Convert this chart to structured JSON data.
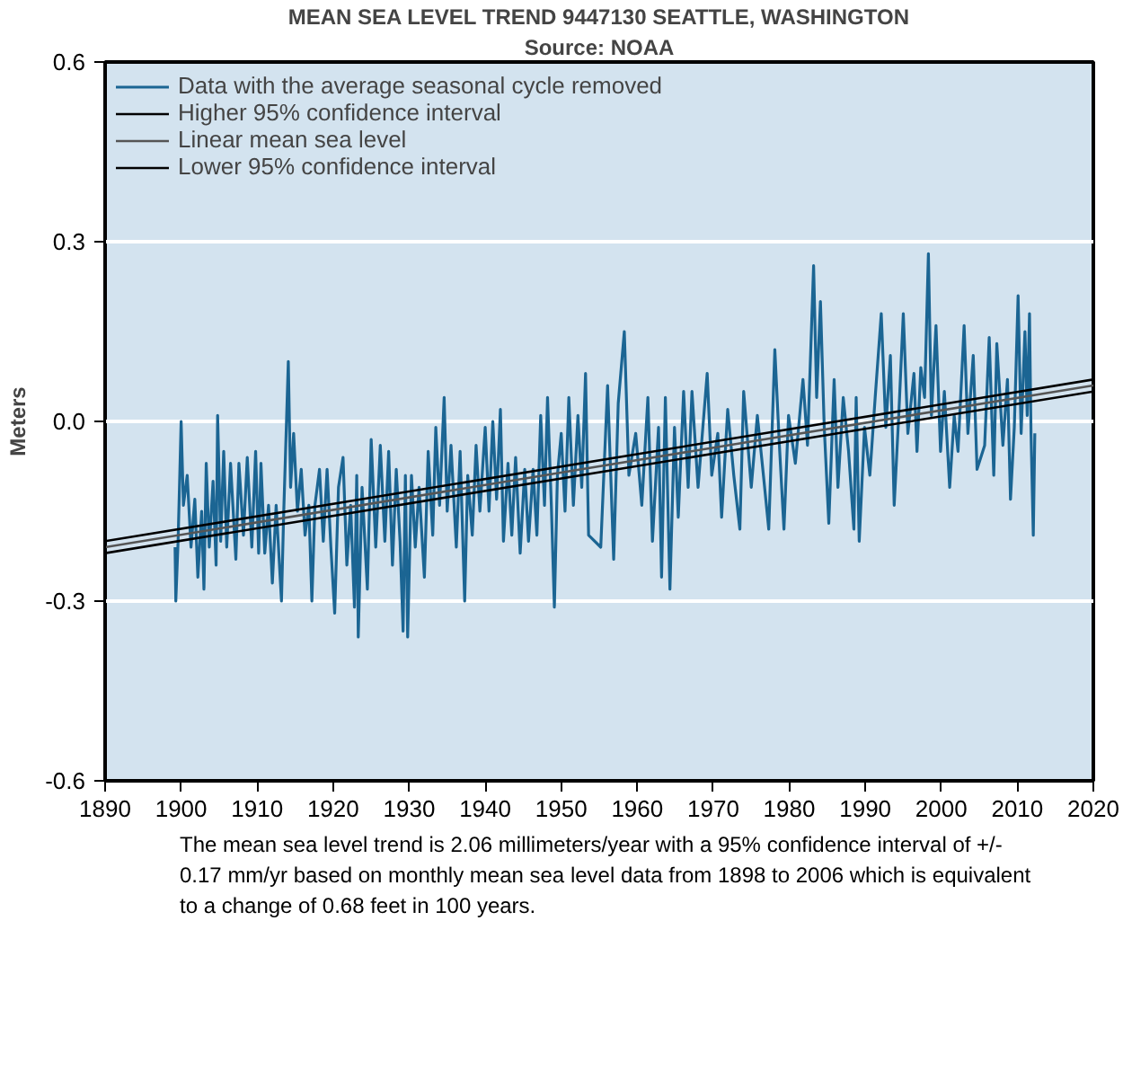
{
  "chart_data": {
    "type": "line",
    "title": "MEAN SEA LEVEL TREND 9447130 SEATTLE, WASHINGTON",
    "subtitle": "Source: NOAA",
    "ylabel": "Meters",
    "xlim": [
      1890,
      2020
    ],
    "ylim": [
      -0.6,
      0.6
    ],
    "xticks": [
      1890,
      1900,
      1910,
      1920,
      1930,
      1940,
      1950,
      1960,
      1970,
      1980,
      1990,
      2000,
      2010,
      2020
    ],
    "yticks": [
      {
        "value": -0.6,
        "label": "-0.6"
      },
      {
        "value": -0.3,
        "label": "-0.3"
      },
      {
        "value": 0,
        "label": "0.0"
      },
      {
        "value": 0.3,
        "label": "0.3"
      },
      {
        "value": 0.6,
        "label": "0.6"
      }
    ],
    "grid": "y",
    "legend": "top left",
    "series": [
      {
        "name": "Data with the average seasonal cycle removed",
        "color": "#1b6593",
        "x": [
          1899.2,
          1899.3,
          1899.6,
          1900,
          1900.3,
          1900.8,
          1901.3,
          1901.8,
          1902.2,
          1902.7,
          1903,
          1903.3,
          1903.7,
          1904.2,
          1904.6,
          1904.8,
          1905.2,
          1905.6,
          1906,
          1906.5,
          1907.2,
          1907.6,
          1908.2,
          1908.7,
          1909.3,
          1909.8,
          1910.2,
          1910.5,
          1911,
          1911.5,
          1912,
          1912.5,
          1913.2,
          1913.5,
          1914.1,
          1914.4,
          1914.8,
          1915.3,
          1915.8,
          1916.3,
          1916.8,
          1917.2,
          1917.6,
          1918.2,
          1918.7,
          1919.2,
          1919.7,
          1920.2,
          1920.7,
          1921.3,
          1921.8,
          1922.3,
          1922.8,
          1923.1,
          1923.3,
          1923.8,
          1924.5,
          1925,
          1925.6,
          1926.2,
          1926.8,
          1927.3,
          1927.8,
          1928.3,
          1928.8,
          1929.2,
          1929.5,
          1929.8,
          1930.3,
          1930.8,
          1931.3,
          1932,
          1932.5,
          1933.1,
          1933.5,
          1934,
          1934.6,
          1935,
          1935.5,
          1936.2,
          1936.7,
          1937.3,
          1937.7,
          1938.3,
          1938.8,
          1939.3,
          1940,
          1940.5,
          1941,
          1941.5,
          1942,
          1942.4,
          1943,
          1943.5,
          1944,
          1944.6,
          1945.2,
          1945.7,
          1946.3,
          1946.8,
          1947.3,
          1947.8,
          1948.2,
          1948.7,
          1949.1,
          1949.5,
          1950,
          1950.5,
          1951,
          1951.6,
          1952.2,
          1952.7,
          1953.2,
          1953.6,
          1955.2,
          1956.1,
          1956.9,
          1957.5,
          1958.3,
          1958.9,
          1959.8,
          1960.6,
          1961.4,
          1962,
          1962.8,
          1963.2,
          1963.7,
          1964.3,
          1964.9,
          1965.4,
          1966.1,
          1966.7,
          1967.2,
          1968,
          1969.2,
          1969.8,
          1970.6,
          1971.1,
          1971.9,
          1972.7,
          1973.5,
          1974,
          1975,
          1975.8,
          1976.6,
          1977.3,
          1978.1,
          1978.7,
          1979.3,
          1979.9,
          1980.8,
          1981.8,
          1982.4,
          1983.2,
          1983.6,
          1984.1,
          1984.6,
          1985.2,
          1985.9,
          1986.4,
          1987.1,
          1987.8,
          1988.5,
          1988.8,
          1989.2,
          1989.9,
          1990.6,
          1991.3,
          1992.1,
          1992.7,
          1993.3,
          1993.8,
          1994.4,
          1995,
          1995.6,
          1996.4,
          1996.8,
          1997.3,
          1997.8,
          1998.3,
          1998.7,
          1999.3,
          1999.9,
          2000.4,
          2001.1,
          2001.7,
          2002.2,
          2003,
          2003.5,
          2004.2,
          2004.7,
          2005.7,
          2006.3,
          2006.9,
          2007.3,
          2008.1,
          2008.7,
          2009.1,
          2009.6,
          2010.1,
          2010.5,
          2011,
          2011.3,
          2011.6,
          2011.8,
          2012.1,
          2012.3
        ],
        "values": [
          -0.21,
          -0.3,
          -0.2,
          0.0,
          -0.14,
          -0.09,
          -0.21,
          -0.13,
          -0.26,
          -0.15,
          -0.28,
          -0.07,
          -0.21,
          -0.1,
          -0.24,
          0.01,
          -0.2,
          -0.05,
          -0.21,
          -0.07,
          -0.23,
          -0.07,
          -0.19,
          -0.06,
          -0.21,
          -0.05,
          -0.22,
          -0.07,
          -0.22,
          -0.14,
          -0.27,
          -0.14,
          -0.3,
          -0.15,
          0.1,
          -0.11,
          -0.02,
          -0.15,
          -0.08,
          -0.19,
          -0.14,
          -0.3,
          -0.14,
          -0.08,
          -0.2,
          -0.08,
          -0.21,
          -0.32,
          -0.11,
          -0.06,
          -0.24,
          -0.14,
          -0.31,
          -0.09,
          -0.36,
          -0.11,
          -0.28,
          -0.03,
          -0.21,
          -0.04,
          -0.2,
          -0.05,
          -0.24,
          -0.08,
          -0.2,
          -0.35,
          -0.09,
          -0.36,
          -0.09,
          -0.21,
          -0.11,
          -0.26,
          -0.05,
          -0.19,
          -0.01,
          -0.14,
          0.04,
          -0.15,
          -0.04,
          -0.21,
          -0.05,
          -0.3,
          -0.09,
          -0.19,
          -0.04,
          -0.15,
          -0.01,
          -0.15,
          0.0,
          -0.13,
          0.02,
          -0.2,
          -0.07,
          -0.19,
          -0.06,
          -0.22,
          -0.08,
          -0.2,
          -0.08,
          -0.19,
          0.01,
          -0.14,
          0.04,
          -0.14,
          -0.31,
          -0.09,
          -0.02,
          -0.15,
          0.04,
          -0.14,
          0.01,
          -0.11,
          0.08,
          -0.19,
          -0.21,
          0.06,
          -0.23,
          0.03,
          0.15,
          -0.09,
          -0.02,
          -0.14,
          0.04,
          -0.2,
          -0.01,
          -0.26,
          0.04,
          -0.28,
          -0.01,
          -0.16,
          0.05,
          -0.11,
          0.05,
          -0.11,
          0.08,
          -0.09,
          -0.02,
          -0.16,
          0.02,
          -0.09,
          -0.18,
          0.05,
          -0.11,
          0.01,
          -0.09,
          -0.18,
          0.12,
          -0.04,
          -0.18,
          0.01,
          -0.07,
          0.07,
          -0.04,
          0.26,
          0.04,
          0.2,
          -0.01,
          -0.17,
          0.07,
          -0.11,
          0.04,
          -0.05,
          -0.18,
          0.04,
          -0.2,
          -0.01,
          -0.09,
          0.04,
          0.18,
          -0.01,
          0.11,
          -0.14,
          0.01,
          0.18,
          -0.02,
          0.08,
          -0.05,
          0.09,
          0.04,
          0.28,
          0.01,
          0.16,
          -0.05,
          0.05,
          -0.11,
          0.01,
          -0.05,
          0.16,
          -0.02,
          0.11,
          -0.08,
          -0.04,
          0.14,
          -0.09,
          0.13,
          -0.04,
          0.07,
          -0.13,
          -0.01,
          0.21,
          -0.02,
          0.15,
          0.01,
          0.18,
          -0.02,
          -0.19,
          -0.02
        ]
      },
      {
        "name": "Higher 95% confidence interval",
        "type": "line",
        "color": "#000000",
        "x": [
          1890,
          2020
        ],
        "values": [
          -0.2,
          0.07
        ]
      },
      {
        "name": "Linear mean sea level",
        "type": "line",
        "color": "#555555",
        "x": [
          1890,
          2020
        ],
        "values": [
          -0.21,
          0.06
        ]
      },
      {
        "name": "Lower 95% confidence interval",
        "type": "line",
        "color": "#000000",
        "x": [
          1890,
          2020
        ],
        "values": [
          -0.22,
          0.05
        ]
      }
    ],
    "annotations": [
      "The mean sea level trend is 2.06 millimeters/year with a 95% confidence interval of +/- 0.17 mm/yr based on monthly mean sea level data from 1898 to 2006 which is equivalent to a change of 0.68 feet in 100 years."
    ]
  }
}
